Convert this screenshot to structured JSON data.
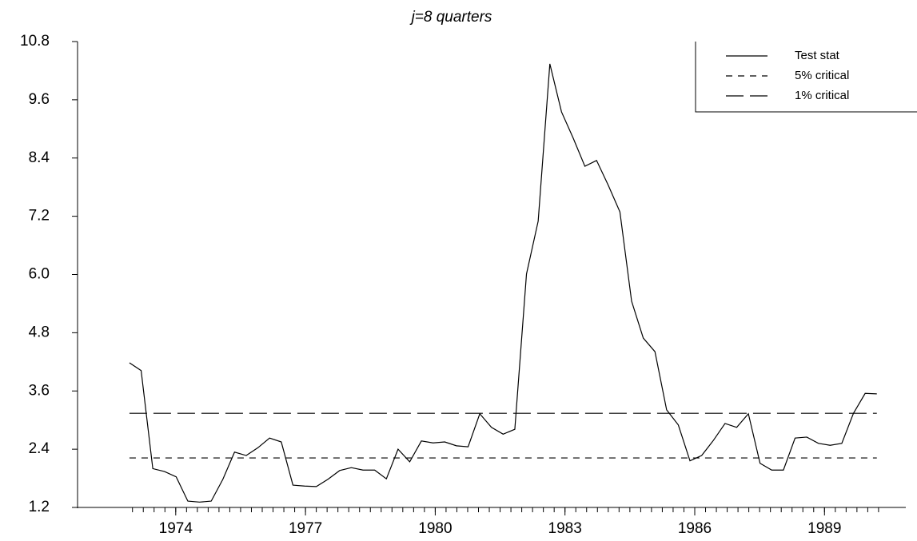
{
  "chart_data": {
    "type": "line",
    "title": "j=8 quarters",
    "x": [
      1972.93,
      1973.2,
      1973.47,
      1973.74,
      1974.01,
      1974.28,
      1974.55,
      1974.82,
      1975.09,
      1975.36,
      1975.63,
      1975.9,
      1976.17,
      1976.44,
      1976.71,
      1976.98,
      1977.25,
      1977.52,
      1977.79,
      1978.06,
      1978.33,
      1978.6,
      1978.87,
      1979.14,
      1979.41,
      1979.68,
      1979.95,
      1980.22,
      1980.49,
      1980.76,
      1981.03,
      1981.3,
      1981.57,
      1981.84,
      1982.11,
      1982.38,
      1982.65,
      1982.92,
      1983.19,
      1983.46,
      1983.73,
      1984.0,
      1984.27,
      1984.54,
      1984.81,
      1985.08,
      1985.35,
      1985.62,
      1985.89,
      1986.16,
      1986.43,
      1986.7,
      1986.97,
      1987.24,
      1987.51,
      1987.78,
      1988.05,
      1988.32,
      1988.59,
      1988.86,
      1989.13,
      1989.4,
      1989.67,
      1989.94,
      1990.21
    ],
    "series": [
      {
        "name": "Test stat",
        "color": "#000000",
        "dash": "none",
        "values": [
          4.18,
          4.02,
          2.0,
          1.94,
          1.83,
          1.33,
          1.31,
          1.33,
          1.78,
          2.34,
          2.27,
          2.43,
          2.63,
          2.55,
          1.66,
          1.64,
          1.63,
          1.78,
          1.96,
          2.02,
          1.97,
          1.97,
          1.79,
          2.4,
          2.14,
          2.57,
          2.53,
          2.55,
          2.47,
          2.45,
          3.13,
          2.85,
          2.71,
          2.81,
          6.01,
          7.1,
          10.34,
          9.35,
          8.81,
          8.23,
          8.35,
          7.84,
          7.29,
          5.45,
          4.69,
          4.41,
          3.21,
          2.9,
          2.16,
          2.27,
          2.58,
          2.93,
          2.85,
          3.13,
          2.11,
          1.97,
          1.97,
          2.63,
          2.65,
          2.52,
          2.48,
          2.52,
          3.14,
          3.55,
          3.54
        ]
      },
      {
        "name": "5% critical",
        "color": "#000000",
        "dash": "8,7",
        "x": [
          1972.93,
          1990.21
        ],
        "values": [
          2.22,
          2.22
        ]
      },
      {
        "name": "1% critical",
        "color": "#000000",
        "dash": "22,8",
        "x": [
          1972.93,
          1990.21
        ],
        "values": [
          3.14,
          3.14
        ]
      }
    ],
    "xlim": [
      1971.73,
      1990.88
    ],
    "xticks": [
      1974,
      1977,
      1980,
      1983,
      1986,
      1989
    ],
    "xminor_step": 0.25,
    "ylim": [
      1.2,
      10.8
    ],
    "yticks": [
      1.2,
      2.4,
      3.6,
      4.8,
      {
        "value": 6,
        "label": "6.0"
      },
      7.2,
      8.4,
      9.6,
      10.8
    ],
    "grid": false,
    "legend": "top-right"
  }
}
